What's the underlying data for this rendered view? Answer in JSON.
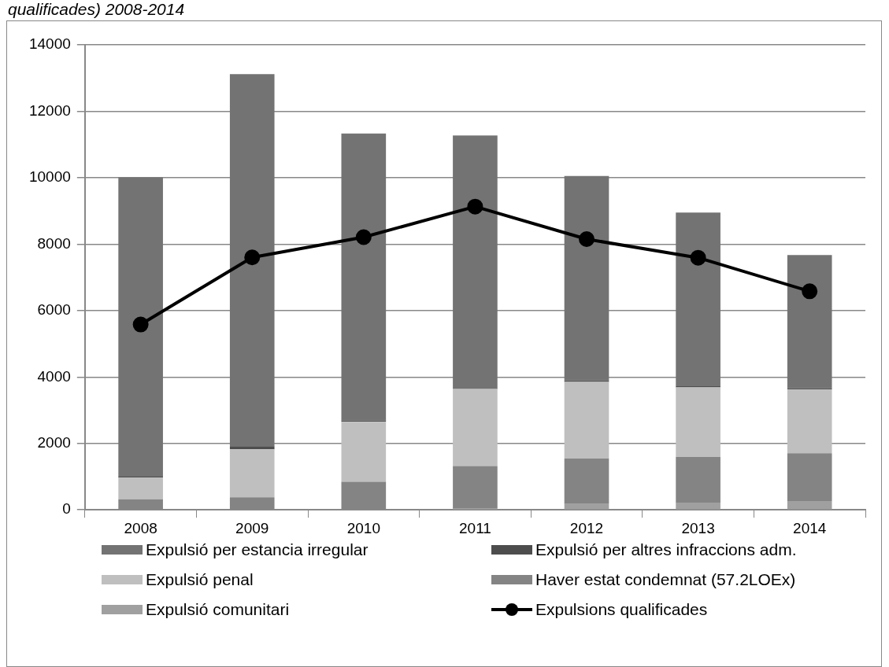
{
  "chart_data": {
    "type": "bar",
    "title": "qualificades) 2008-2014",
    "categories": [
      "2008",
      "2009",
      "2010",
      "2011",
      "2012",
      "2013",
      "2014"
    ],
    "stacked": true,
    "ylim": [
      0,
      14000
    ],
    "yticks": [
      0,
      2000,
      4000,
      6000,
      8000,
      10000,
      12000,
      14000
    ],
    "grid": "y",
    "legend": "bottom",
    "series": [
      {
        "name": "Expulsió comunitari",
        "color": "#a0a0a0",
        "values": [
          null,
          null,
          null,
          50,
          175,
          200,
          265
        ]
      },
      {
        "name": "Haver estat condemnat (57.2LOEx)",
        "color": "#848484",
        "values": [
          320,
          380,
          845,
          1270,
          1370,
          1390,
          1440
        ]
      },
      {
        "name": "Expulsió penal",
        "color": "#bfbfbf",
        "values": [
          650,
          1440,
          1805,
          2320,
          2310,
          2100,
          1915
        ]
      },
      {
        "name": "Expulsió per altres infraccions adm.",
        "color": "#4d4d4d",
        "values": [
          50,
          95,
          40,
          30,
          40,
          30,
          40
        ]
      },
      {
        "name": "Expulsió per estancia irregular",
        "color": "#737373",
        "values": [
          8990,
          11205,
          8640,
          7600,
          6155,
          5230,
          4010
        ]
      },
      {
        "name": "Expulsions qualificades",
        "type": "line",
        "color": "#000000",
        "marker": "circle",
        "values": [
          5580,
          7600,
          8210,
          9130,
          8150,
          7590,
          6580
        ]
      }
    ]
  }
}
